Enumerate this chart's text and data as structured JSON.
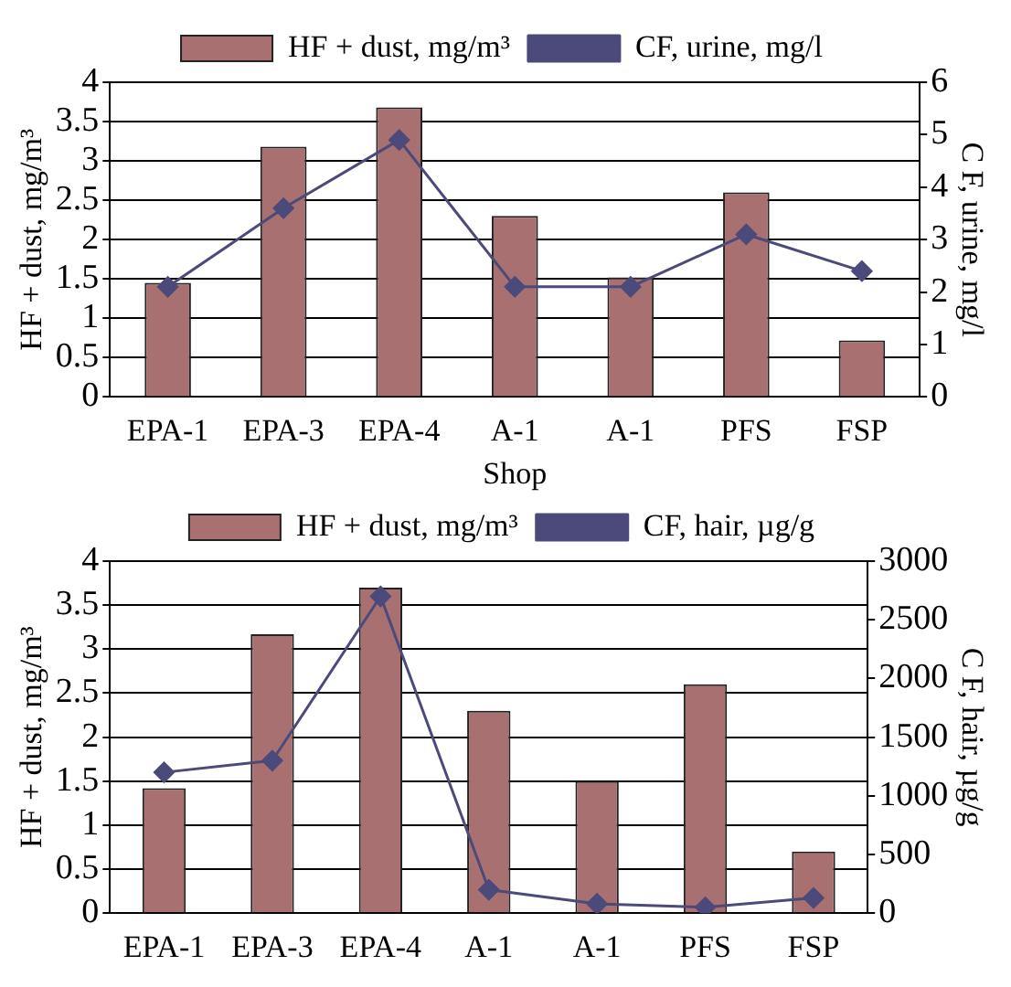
{
  "chart_data": [
    {
      "type": "bar",
      "categories": [
        "EPA-1",
        "EPA-3",
        "EPA-4",
        "A-1",
        "A-1",
        "PFS",
        "FSP"
      ],
      "xlabel": "Shop",
      "ylabel": "HF + dust, mg/m³",
      "y2label": "C F, urine, mg/l",
      "ylim": [
        0,
        4
      ],
      "yticks": [
        0,
        0.5,
        1,
        1.5,
        2,
        2.5,
        3,
        3.5,
        4
      ],
      "y2lim": [
        0,
        6
      ],
      "y2ticks": [
        0,
        1,
        2,
        3,
        4,
        5,
        6
      ],
      "grid": "y",
      "legend": "top",
      "marker": "diamond",
      "series": [
        {
          "name": "HF + dust, mg/m³",
          "color": "#a87070",
          "values": [
            1.45,
            3.18,
            3.68,
            2.3,
            1.52,
            2.6,
            0.72
          ]
        },
        {
          "name": "CF, urine, mg/l",
          "type": "line",
          "axis": "y2",
          "color": "#4b4a7a",
          "values": [
            2.1,
            3.6,
            4.9,
            2.1,
            2.1,
            3.1,
            2.4
          ]
        }
      ]
    },
    {
      "type": "bar",
      "categories": [
        "EPA-1",
        "EPA-3",
        "EPA-4",
        "A-1",
        "A-1",
        "PFS",
        "FSP"
      ],
      "ylabel": "HF + dust, mg/m³",
      "y2label": "C F, hair, µg/g",
      "ylim": [
        0,
        4
      ],
      "yticks": [
        0,
        0.5,
        1,
        1.5,
        2,
        2.5,
        3,
        3.5,
        4
      ],
      "y2lim": [
        0,
        3000
      ],
      "y2ticks": [
        0,
        500,
        1000,
        1500,
        2000,
        2500,
        3000
      ],
      "grid": "y",
      "legend": "top",
      "marker": "diamond",
      "series": [
        {
          "name": "HF + dust, mg/m³",
          "color": "#a87070",
          "values": [
            1.42,
            3.17,
            3.7,
            2.3,
            1.5,
            2.6,
            0.7
          ]
        },
        {
          "name": "CF, hair, µg/g",
          "type": "line",
          "axis": "y2",
          "color": "#4b4a7a",
          "values": [
            1200,
            1300,
            2700,
            200,
            80,
            50,
            130
          ]
        }
      ]
    }
  ]
}
